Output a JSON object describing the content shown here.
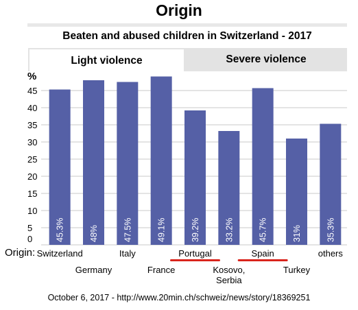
{
  "header": {
    "title": "Origin",
    "subtitle": "Beaten and abused children in Switzerland - 2017"
  },
  "tabs": [
    {
      "label": "Light violence",
      "active": true
    },
    {
      "label": "Severe violence",
      "active": false
    }
  ],
  "axis_prefix": "Origin:",
  "footer": "October 6, 2017  -  http://www.20min.ch/schweiz/news/story/18369251",
  "colors": {
    "bar": "#5560a6",
    "grid": "#c8c8c8",
    "highlight_underline": "#d9241c",
    "tab_inactive": "#e3e3e3"
  },
  "chart_data": {
    "type": "bar",
    "ylabel": "%",
    "ylim": [
      0,
      50
    ],
    "yticks": [
      0,
      5,
      10,
      15,
      20,
      25,
      30,
      35,
      40,
      45
    ],
    "grid": true,
    "categories": [
      {
        "lines": [
          "Switzerland"
        ],
        "row": 0,
        "highlight": false
      },
      {
        "lines": [
          "Germany"
        ],
        "row": 1,
        "highlight": false
      },
      {
        "lines": [
          "Italy"
        ],
        "row": 0,
        "highlight": false
      },
      {
        "lines": [
          "France"
        ],
        "row": 1,
        "highlight": false
      },
      {
        "lines": [
          "Portugal"
        ],
        "row": 0,
        "highlight": true
      },
      {
        "lines": [
          "Kosovo,",
          "Serbia"
        ],
        "row": 1,
        "highlight": false
      },
      {
        "lines": [
          "Spain"
        ],
        "row": 0,
        "highlight": true
      },
      {
        "lines": [
          "Turkey"
        ],
        "row": 1,
        "highlight": false
      },
      {
        "lines": [
          "others"
        ],
        "row": 0,
        "highlight": false
      }
    ],
    "values": [
      45.3,
      48,
      47.5,
      49.1,
      39.2,
      33.2,
      45.7,
      31,
      35.3
    ],
    "data_labels": [
      "45.3%",
      "48%",
      "47.5%",
      "49.1%",
      "39.2%",
      "33.2%",
      "45.7%",
      "31%",
      "35.3%"
    ]
  }
}
